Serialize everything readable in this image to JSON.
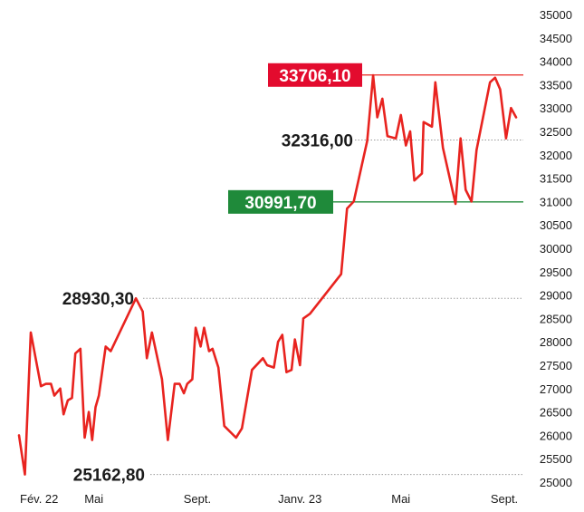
{
  "chart_data": {
    "type": "line",
    "title": "",
    "xlabel": "",
    "ylabel": "",
    "ylim": [
      25000,
      35000
    ],
    "yticks": [
      "35000",
      "34500",
      "34000",
      "33500",
      "33000",
      "32500",
      "32000",
      "31500",
      "31000",
      "30500",
      "30000",
      "29500",
      "29000",
      "28500",
      "28000",
      "27500",
      "27000",
      "26500",
      "26000",
      "25500",
      "25000"
    ],
    "x_tick_labels": [
      {
        "label": "Fév. 22",
        "date": "2022-02-01"
      },
      {
        "label": "Mai",
        "date": "2022-05-01"
      },
      {
        "label": "Sept.",
        "date": "2022-09-01"
      },
      {
        "label": "Janv. 23",
        "date": "2023-01-01"
      },
      {
        "label": "Mai",
        "date": "2023-05-01"
      },
      {
        "label": "Sept.",
        "date": "2023-09-01"
      }
    ],
    "series": [
      {
        "color": "#e8231f",
        "points": [
          [
            "2022-02-01",
            26000
          ],
          [
            "2022-02-08",
            25163
          ],
          [
            "2022-02-15",
            28200
          ],
          [
            "2022-02-27",
            27050
          ],
          [
            "2022-03-05",
            27100
          ],
          [
            "2022-03-11",
            27100
          ],
          [
            "2022-03-15",
            26850
          ],
          [
            "2022-03-22",
            27000
          ],
          [
            "2022-03-26",
            26450
          ],
          [
            "2022-03-31",
            26750
          ],
          [
            "2022-04-05",
            26800
          ],
          [
            "2022-04-09",
            27750
          ],
          [
            "2022-04-15",
            27850
          ],
          [
            "2022-04-20",
            25950
          ],
          [
            "2022-04-25",
            26500
          ],
          [
            "2022-04-29",
            25900
          ],
          [
            "2022-05-03",
            26600
          ],
          [
            "2022-05-07",
            26850
          ],
          [
            "2022-05-15",
            27900
          ],
          [
            "2022-05-21",
            27800
          ],
          [
            "2022-06-20",
            28930
          ],
          [
            "2022-06-28",
            28650
          ],
          [
            "2022-07-03",
            27650
          ],
          [
            "2022-07-09",
            28200
          ],
          [
            "2022-07-21",
            27200
          ],
          [
            "2022-07-28",
            25900
          ],
          [
            "2022-08-05",
            27100
          ],
          [
            "2022-08-11",
            27100
          ],
          [
            "2022-08-16",
            26900
          ],
          [
            "2022-08-20",
            27100
          ],
          [
            "2022-08-26",
            27200
          ],
          [
            "2022-08-30",
            28300
          ],
          [
            "2022-09-05",
            27900
          ],
          [
            "2022-09-09",
            28300
          ],
          [
            "2022-09-15",
            27800
          ],
          [
            "2022-09-19",
            27850
          ],
          [
            "2022-09-26",
            27450
          ],
          [
            "2022-10-03",
            26200
          ],
          [
            "2022-10-17",
            25950
          ],
          [
            "2022-10-24",
            26150
          ],
          [
            "2022-11-05",
            27400
          ],
          [
            "2022-11-18",
            27650
          ],
          [
            "2022-11-23",
            27500
          ],
          [
            "2022-12-01",
            27450
          ],
          [
            "2022-12-06",
            28000
          ],
          [
            "2022-12-11",
            28150
          ],
          [
            "2022-12-16",
            27350
          ],
          [
            "2022-12-22",
            27400
          ],
          [
            "2022-12-26",
            28050
          ],
          [
            "2023-01-01",
            27500
          ],
          [
            "2023-01-05",
            28500
          ],
          [
            "2023-01-13",
            28600
          ],
          [
            "2023-02-19",
            29450
          ],
          [
            "2023-02-26",
            30850
          ],
          [
            "2023-03-06",
            31000
          ],
          [
            "2023-03-22",
            32300
          ],
          [
            "2023-03-29",
            33700
          ],
          [
            "2023-04-03",
            32800
          ],
          [
            "2023-04-09",
            33200
          ],
          [
            "2023-04-15",
            32400
          ],
          [
            "2023-04-25",
            32350
          ],
          [
            "2023-05-01",
            32850
          ],
          [
            "2023-05-07",
            32200
          ],
          [
            "2023-05-12",
            32500
          ],
          [
            "2023-05-17",
            31450
          ],
          [
            "2023-05-26",
            31600
          ],
          [
            "2023-05-28",
            32700
          ],
          [
            "2023-06-07",
            32600
          ],
          [
            "2023-06-11",
            33550
          ],
          [
            "2023-06-20",
            32150
          ],
          [
            "2023-07-05",
            30950
          ],
          [
            "2023-07-11",
            32350
          ],
          [
            "2023-07-17",
            31250
          ],
          [
            "2023-07-24",
            31000
          ],
          [
            "2023-07-30",
            32100
          ],
          [
            "2023-08-15",
            33550
          ],
          [
            "2023-08-21",
            33650
          ],
          [
            "2023-08-27",
            33400
          ],
          [
            "2023-09-03",
            32350
          ],
          [
            "2023-09-09",
            33000
          ],
          [
            "2023-09-15",
            32800
          ]
        ]
      }
    ],
    "reference_lines": [
      {
        "value": 33706.1,
        "label": "33706,10",
        "style": "solid",
        "color": "#e8231f",
        "box_color": "#e30b2e",
        "boxed": true
      },
      {
        "value": 32316.0,
        "label": "32316,00",
        "style": "dotted",
        "color": "#9a9a9a",
        "boxed": false
      },
      {
        "value": 30991.7,
        "label": "30991,70",
        "style": "solid",
        "color": "#1f8a3a",
        "box_color": "#1f8a3a",
        "boxed": true
      },
      {
        "value": 28930.3,
        "label": "28930,30",
        "style": "dotted",
        "color": "#9a9a9a",
        "boxed": false
      },
      {
        "value": 25162.8,
        "label": "25162,80",
        "style": "dotted",
        "color": "#9a9a9a",
        "boxed": false
      }
    ],
    "grid": false
  }
}
